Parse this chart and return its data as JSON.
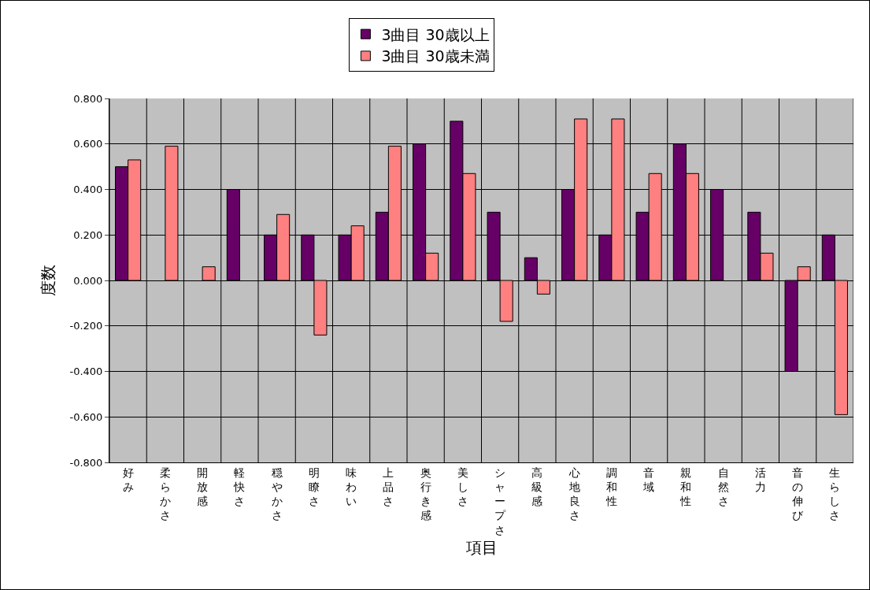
{
  "chart_data": {
    "type": "bar",
    "xlabel": "項目",
    "ylabel": "度数",
    "categories": [
      "好み",
      "柔らかさ",
      "開放感",
      "軽快さ",
      "穏やかさ",
      "明瞭さ",
      "味わい",
      "上品さ",
      "奥行き感",
      "美しさ",
      "シャープさ",
      "高級感",
      "心地良さ",
      "調和性",
      "音域",
      "親和性",
      "自然さ",
      "活力",
      "音の伸び",
      "生らしさ"
    ],
    "series": [
      {
        "name": "3曲目 30歳以上",
        "color": "#660066",
        "values": [
          0.5,
          null,
          null,
          0.4,
          0.2,
          0.2,
          0.2,
          0.3,
          0.6,
          0.7,
          0.3,
          0.1,
          0.4,
          0.2,
          0.3,
          0.6,
          0.4,
          0.3,
          -0.4,
          0.2
        ]
      },
      {
        "name": "3曲目 30歳未満",
        "color": "#ff8080",
        "values": [
          0.53,
          0.59,
          0.06,
          null,
          0.29,
          -0.24,
          0.24,
          0.59,
          0.12,
          0.47,
          -0.18,
          -0.06,
          0.71,
          0.71,
          0.47,
          0.47,
          null,
          0.12,
          0.06,
          -0.59
        ]
      }
    ],
    "ylim": [
      -0.8,
      0.8
    ],
    "yticks": [
      {
        "value": -0.8,
        "label": "-0.800"
      },
      {
        "value": -0.6,
        "label": "-0.600"
      },
      {
        "value": -0.4,
        "label": "-0.400"
      },
      {
        "value": -0.2,
        "label": "-0.200"
      },
      {
        "value": 0,
        "label": "0.000"
      },
      {
        "value": 0.2,
        "label": "0.200"
      },
      {
        "value": 0.4,
        "label": "0.400"
      },
      {
        "value": 0.6,
        "label": "0.600"
      },
      {
        "value": 0.8,
        "label": "0.800"
      }
    ],
    "grid": true,
    "legend": "top"
  }
}
